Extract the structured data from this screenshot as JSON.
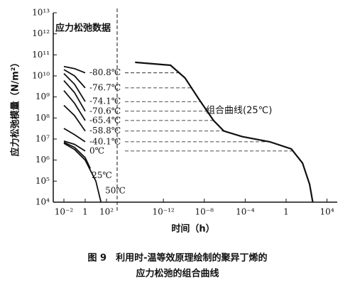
{
  "chart_data": [
    {
      "type": "line",
      "title": "应力松弛数据",
      "ylabel": "应力松弛模量（N/m²）",
      "log_x": true,
      "log_y": true,
      "color": "#111111",
      "xlim": [
        0.001,
        1000
      ],
      "ylim": [
        10000,
        10000000000000.0
      ],
      "xticks": [
        {
          "value": 0.01,
          "label": "10⁻²"
        },
        1,
        {
          "value": 100,
          "label": "10²"
        }
      ],
      "yticks": [
        {
          "value": 10000,
          "label": "10⁴"
        },
        {
          "value": 100000,
          "label": "10⁵"
        },
        {
          "value": 1000000,
          "label": "10⁶"
        },
        {
          "value": 10000000.0,
          "label": "10⁷"
        },
        {
          "value": 100000000.0,
          "label": "10⁸"
        },
        {
          "value": 1000000000.0,
          "label": "10⁹"
        },
        {
          "value": 10000000000.0,
          "label": "10¹⁰"
        },
        {
          "value": 100000000000.0,
          "label": "10¹¹"
        },
        {
          "value": 1000000000000.0,
          "label": "10¹²"
        },
        {
          "value": 10000000000000.0,
          "label": "10¹³"
        }
      ],
      "series": [
        {
          "name": "-80.8℃",
          "x": [
            0.01,
            0.1,
            1
          ],
          "values": [
            28000000000.0,
            22000000000.0,
            14000000000.0
          ]
        },
        {
          "name": "-76.7℃",
          "x": [
            0.01,
            0.1,
            1
          ],
          "values": [
            20000000000.0,
            10000000000.0,
            2700000000.0
          ]
        },
        {
          "name": "-74.1℃",
          "x": [
            0.01,
            0.1,
            1
          ],
          "values": [
            13000000000.0,
            4000000000.0,
            600000000.0
          ]
        },
        {
          "name": "-70.6℃",
          "x": [
            0.01,
            0.1,
            1
          ],
          "values": [
            6000000000.0,
            1600000000.0,
            210000000.0
          ]
        },
        {
          "name": "-65.4℃",
          "x": [
            0.01,
            0.1,
            1
          ],
          "values": [
            2000000000.0,
            500000000.0,
            76000000.0
          ]
        },
        {
          "name": "-58.8℃",
          "x": [
            0.01,
            0.1,
            1
          ],
          "values": [
            400000000.0,
            130000000.0,
            24000000.0
          ]
        },
        {
          "name": "-40.1℃",
          "x": [
            0.01,
            0.1,
            1
          ],
          "values": [
            32000000.0,
            16000000.0,
            7400000.0
          ]
        },
        {
          "name": "0℃",
          "x": [
            0.01,
            0.1,
            1
          ],
          "values": [
            8000000.0,
            5600000.0,
            2700000.0
          ]
        },
        {
          "name": "25℃",
          "x": [
            0.01,
            0.1,
            1,
            3
          ],
          "values": [
            7000000.0,
            4000000.0,
            1300000.0,
            400000.0
          ]
        },
        {
          "name": "50℃",
          "x": [
            0.01,
            0.1,
            1,
            10,
            30
          ],
          "values": [
            6300000.0,
            3200000.0,
            1000000.0,
            100000.0,
            10000.0
          ]
        }
      ]
    },
    {
      "type": "line",
      "annotation": "组合曲线(25℃)",
      "xlabel": "时间（h）",
      "log_x": true,
      "log_y": true,
      "color": "#111111",
      "xlim": [
        3e-17,
        100000
      ],
      "ylim": [
        10000,
        10000000000000.0
      ],
      "xticks": [
        {
          "value": 1e-12,
          "label": "10⁻¹²"
        },
        {
          "value": 1e-08,
          "label": "10⁻⁸"
        },
        {
          "value": 0.0001,
          "label": "10⁻⁴"
        },
        1,
        {
          "value": 10000,
          "label": "10⁴"
        }
      ],
      "series": [
        {
          "x": [
            1.7e-15,
            5e-12,
            1.3e-10,
            3e-09,
            8e-08,
            8e-07,
            5e-05,
            0.025,
            3.2,
            40,
            200,
            400
          ],
          "values": [
            44000000000.0,
            32000000000.0,
            8000000000.0,
            780000000.0,
            76000000.0,
            24000000.0,
            13000000.0,
            7400000.0,
            3400000.0,
            720000.0,
            70000.0,
            10000
          ]
        }
      ]
    }
  ],
  "caption": [
    "图 9　利用时-温等效原理绘制的聚异丁烯的",
    "应力松弛的组合曲线"
  ]
}
